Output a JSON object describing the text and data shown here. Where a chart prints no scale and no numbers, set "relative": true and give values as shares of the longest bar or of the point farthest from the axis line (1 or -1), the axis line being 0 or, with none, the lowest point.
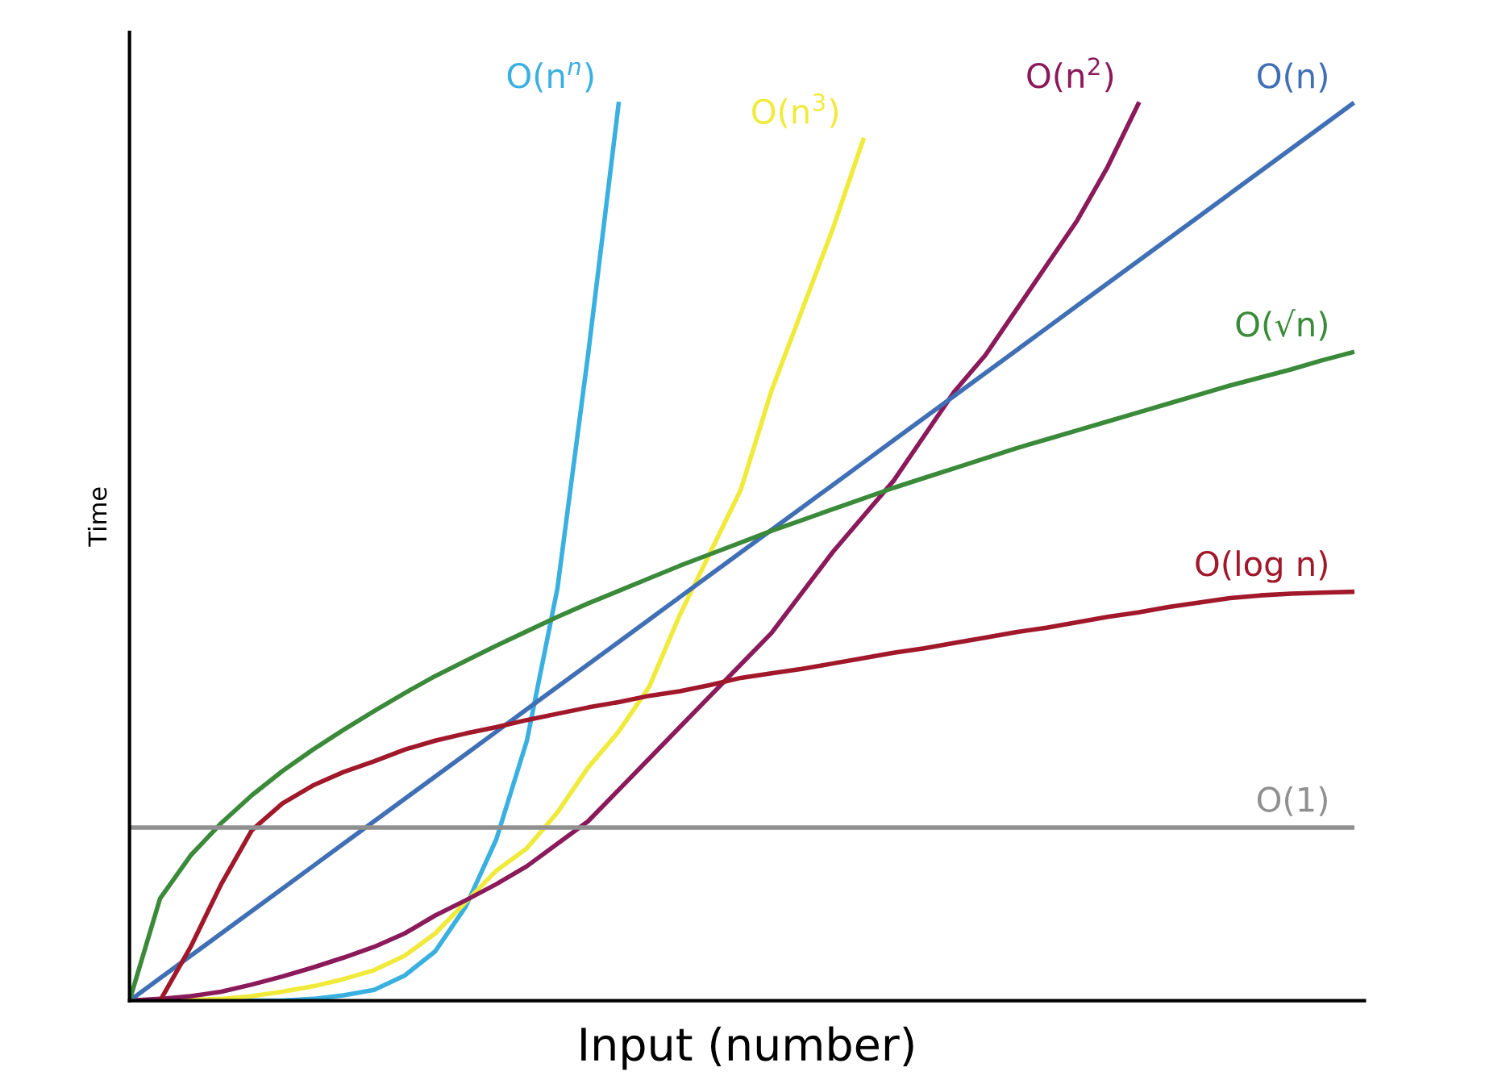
{
  "chart_data": {
    "type": "line",
    "relative": true,
    "xlabel": "Input (number)",
    "ylabel": "Time",
    "marker": "none",
    "line_style": "solid",
    "categories": [
      null,
      null,
      null,
      null,
      null,
      null,
      null,
      null,
      null,
      null,
      null,
      null,
      null,
      null,
      null,
      null,
      null,
      null,
      null,
      null,
      null,
      null,
      null,
      null,
      null,
      null,
      null,
      null,
      null,
      null,
      null,
      null,
      null,
      null,
      null,
      null,
      null,
      null,
      null,
      null,
      null
    ],
    "series": [
      {
        "name": "O(n$^{n}$)",
        "color": "#3ab0e0",
        "values": [
          0,
          0,
          0,
          0,
          0,
          0,
          0.002,
          0.006,
          0.012,
          0.028,
          0.055,
          0.105,
          0.18,
          0.29,
          0.46,
          0.72,
          1,
          null,
          null,
          null,
          null,
          null,
          null,
          null,
          null,
          null,
          null,
          null,
          null,
          null,
          null,
          null,
          null,
          null,
          null,
          null,
          null,
          null,
          null,
          null,
          null
        ]
      },
      {
        "name": "O(n$^{3}$)",
        "color": "#f0ea3a",
        "values": [
          0,
          0,
          0.001,
          0.002,
          0.005,
          0.01,
          0.016,
          0.024,
          0.034,
          0.05,
          0.075,
          0.11,
          0.145,
          0.17,
          0.21,
          0.26,
          0.3,
          0.35,
          0.43,
          0.5,
          0.57,
          0.68,
          0.77,
          0.86,
          0.96,
          null,
          null,
          null,
          null,
          null,
          null,
          null,
          null,
          null,
          null,
          null,
          null,
          null,
          null,
          null,
          null
        ]
      },
      {
        "name": "O(n$^{2}$)",
        "color": "#8b1a5a",
        "values": [
          0,
          0.002,
          0.005,
          0.01,
          0.018,
          0.027,
          0.037,
          0.048,
          0.06,
          0.075,
          0.095,
          0.112,
          0.13,
          0.15,
          0.175,
          0.2,
          0.235,
          0.27,
          0.305,
          0.34,
          0.375,
          0.41,
          0.455,
          0.5,
          0.54,
          0.58,
          0.63,
          0.68,
          0.72,
          0.77,
          0.82,
          0.87,
          0.93,
          1,
          null,
          null,
          null,
          null,
          null,
          null,
          null
        ]
      },
      {
        "name": "O(n)",
        "color": "#3f6fb5",
        "values": [
          0,
          0.025,
          0.05,
          0.075,
          0.1,
          0.125,
          0.15,
          0.175,
          0.2,
          0.225,
          0.25,
          0.275,
          0.3,
          0.325,
          0.35,
          0.375,
          0.4,
          0.425,
          0.45,
          0.475,
          0.5,
          0.525,
          0.55,
          0.575,
          0.6,
          0.625,
          0.65,
          0.675,
          0.7,
          0.725,
          0.75,
          0.775,
          0.8,
          0.825,
          0.85,
          0.875,
          0.9,
          0.925,
          0.95,
          0.975,
          1
        ]
      },
      {
        "name": "O(√n)",
        "color": "#3a8a3a",
        "values": [
          0,
          0.114,
          0.162,
          0.198,
          0.229,
          0.256,
          0.28,
          0.302,
          0.323,
          0.343,
          0.362,
          0.379,
          0.396,
          0.412,
          0.428,
          0.443,
          0.457,
          0.471,
          0.485,
          0.498,
          0.511,
          0.524,
          0.536,
          0.548,
          0.56,
          0.572,
          0.583,
          0.594,
          0.605,
          0.616,
          0.626,
          0.636,
          0.646,
          0.656,
          0.666,
          0.676,
          0.686,
          0.695,
          0.704,
          0.714,
          0.723
        ]
      },
      {
        "name": "O(log n)",
        "color": "#a0182a",
        "values": [
          null,
          0,
          0.06,
          0.13,
          0.19,
          0.22,
          0.24,
          0.255,
          0.267,
          0.28,
          0.29,
          0.298,
          0.305,
          0.313,
          0.32,
          0.327,
          0.333,
          0.34,
          0.345,
          0.352,
          0.36,
          0.365,
          0.37,
          0.376,
          0.382,
          0.388,
          0.393,
          0.399,
          0.405,
          0.411,
          0.416,
          0.422,
          0.428,
          0.433,
          0.439,
          0.444,
          0.449,
          0.452,
          0.454,
          0.455,
          0.456
        ]
      },
      {
        "name": "O(1)",
        "color": "#909090",
        "values": [
          0.193,
          0.193,
          0.193,
          0.193,
          0.193,
          0.193,
          0.193,
          0.193,
          0.193,
          0.193,
          0.193,
          0.193,
          0.193,
          0.193,
          0.193,
          0.193,
          0.193,
          0.193,
          0.193,
          0.193,
          0.193,
          0.193,
          0.193,
          0.193,
          0.193,
          0.193,
          0.193,
          0.193,
          0.193,
          0.193,
          0.193,
          0.193,
          0.193,
          0.193,
          0.193,
          0.193,
          0.193,
          0.193,
          0.193,
          0.193,
          0.193
        ]
      }
    ]
  }
}
